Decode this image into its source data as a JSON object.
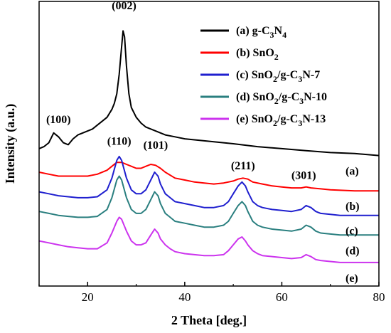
{
  "chart_data": {
    "type": "line",
    "xlabel": "2 Theta [deg.]",
    "ylabel": "Intensity (a.u.)",
    "xlim": [
      10,
      80
    ],
    "x_ticks": [
      20,
      40,
      60,
      80
    ],
    "y_ticks_shown": false,
    "grid": false,
    "legend_position": "top-right",
    "series": [
      {
        "label": "(a)",
        "legend": [
          "(a) g-C",
          "3",
          "N",
          "4",
          ""
        ],
        "color": "#000000",
        "x": [
          10,
          11,
          12,
          13,
          14,
          15,
          16,
          17,
          18,
          19,
          20,
          21,
          22,
          23,
          24,
          25,
          25.5,
          26,
          26.5,
          27,
          27.3,
          27.6,
          28,
          28.5,
          29,
          30,
          31,
          32,
          34,
          36,
          38,
          40,
          42,
          44,
          46,
          48,
          50,
          55,
          60,
          65,
          70,
          75,
          80
        ],
        "y": [
          0.7,
          0.71,
          0.73,
          0.78,
          0.76,
          0.73,
          0.72,
          0.75,
          0.77,
          0.78,
          0.79,
          0.8,
          0.82,
          0.84,
          0.86,
          0.9,
          0.93,
          0.98,
          1.08,
          1.22,
          1.3,
          1.27,
          1.12,
          0.98,
          0.91,
          0.86,
          0.83,
          0.81,
          0.79,
          0.77,
          0.76,
          0.75,
          0.745,
          0.74,
          0.735,
          0.73,
          0.725,
          0.71,
          0.7,
          0.69,
          0.68,
          0.675,
          0.665
        ]
      },
      {
        "label": "(b)",
        "legend": [
          "(b) SnO",
          "2",
          "",
          "",
          ""
        ],
        "color": "#ff0000",
        "x": [
          10,
          12,
          14,
          16,
          18,
          20,
          22,
          24,
          25,
          26,
          27,
          28,
          29,
          30,
          31,
          32,
          33,
          34,
          35,
          36,
          38,
          40,
          42,
          44,
          46,
          48,
          50,
          51,
          52,
          53,
          54,
          56,
          58,
          60,
          62,
          64,
          65,
          66,
          68,
          70,
          75,
          80
        ],
        "y": [
          0.58,
          0.57,
          0.56,
          0.56,
          0.56,
          0.56,
          0.57,
          0.59,
          0.61,
          0.63,
          0.63,
          0.62,
          0.61,
          0.6,
          0.6,
          0.61,
          0.62,
          0.615,
          0.6,
          0.58,
          0.55,
          0.54,
          0.53,
          0.525,
          0.52,
          0.525,
          0.535,
          0.545,
          0.55,
          0.545,
          0.53,
          0.52,
          0.51,
          0.505,
          0.5,
          0.5,
          0.505,
          0.5,
          0.495,
          0.49,
          0.485,
          0.485
        ]
      },
      {
        "label": "(c)",
        "legend": [
          "(c) SnO",
          "2",
          "/g-C",
          "3",
          "N-7"
        ],
        "color": "#1f1fcf",
        "x": [
          10,
          12,
          14,
          16,
          18,
          20,
          22,
          24,
          25,
          26,
          26.5,
          27,
          28,
          29,
          30,
          31,
          32,
          33,
          33.8,
          34.5,
          35,
          36,
          37,
          38,
          40,
          42,
          44,
          46,
          48,
          49,
          50,
          51,
          51.8,
          52.5,
          53,
          54,
          55,
          56,
          58,
          60,
          62,
          64,
          65,
          66,
          67,
          68,
          70,
          72,
          75,
          80
        ],
        "y": [
          0.48,
          0.47,
          0.46,
          0.455,
          0.45,
          0.45,
          0.455,
          0.49,
          0.55,
          0.64,
          0.66,
          0.64,
          0.55,
          0.49,
          0.47,
          0.47,
          0.49,
          0.54,
          0.58,
          0.56,
          0.52,
          0.47,
          0.45,
          0.43,
          0.42,
          0.41,
          0.4,
          0.4,
          0.41,
          0.43,
          0.47,
          0.51,
          0.53,
          0.51,
          0.48,
          0.43,
          0.41,
          0.4,
          0.39,
          0.385,
          0.38,
          0.39,
          0.41,
          0.4,
          0.38,
          0.37,
          0.365,
          0.36,
          0.36,
          0.36
        ]
      },
      {
        "label": "(d)",
        "legend": [
          "(d) SnO",
          "2",
          "/g-C",
          "3",
          "N-10"
        ],
        "color": "#2a7f7f",
        "x": [
          10,
          12,
          14,
          16,
          18,
          20,
          22,
          24,
          25,
          26,
          26.5,
          27,
          28,
          29,
          30,
          31,
          32,
          33,
          33.8,
          34.5,
          35,
          36,
          37,
          38,
          40,
          42,
          44,
          46,
          48,
          49,
          50,
          51,
          51.8,
          52.5,
          53,
          54,
          55,
          56,
          58,
          60,
          62,
          64,
          65,
          66,
          67,
          68,
          70,
          72,
          75,
          80
        ],
        "y": [
          0.38,
          0.37,
          0.36,
          0.355,
          0.35,
          0.35,
          0.355,
          0.39,
          0.45,
          0.54,
          0.56,
          0.54,
          0.45,
          0.39,
          0.37,
          0.37,
          0.39,
          0.44,
          0.48,
          0.46,
          0.42,
          0.37,
          0.35,
          0.33,
          0.32,
          0.31,
          0.3,
          0.3,
          0.31,
          0.33,
          0.37,
          0.41,
          0.43,
          0.41,
          0.38,
          0.33,
          0.31,
          0.3,
          0.29,
          0.285,
          0.28,
          0.29,
          0.31,
          0.3,
          0.28,
          0.27,
          0.265,
          0.26,
          0.26,
          0.26
        ]
      },
      {
        "label": "(e)",
        "legend": [
          "(e) SnO",
          "2",
          "/g-C",
          "3",
          "N-13"
        ],
        "color": "#cc33ee",
        "x": [
          10,
          12,
          14,
          16,
          18,
          20,
          22,
          24,
          25,
          26,
          26.5,
          27,
          28,
          29,
          30,
          31,
          32,
          33,
          33.8,
          34.5,
          35,
          36,
          37,
          38,
          40,
          42,
          44,
          46,
          48,
          49,
          50,
          51,
          51.8,
          52.5,
          53,
          54,
          55,
          56,
          58,
          60,
          62,
          64,
          65,
          66,
          67,
          68,
          70,
          72,
          75,
          80
        ],
        "y": [
          0.23,
          0.22,
          0.21,
          0.2,
          0.195,
          0.19,
          0.19,
          0.22,
          0.27,
          0.33,
          0.35,
          0.34,
          0.28,
          0.23,
          0.21,
          0.21,
          0.22,
          0.26,
          0.29,
          0.27,
          0.24,
          0.21,
          0.19,
          0.175,
          0.165,
          0.16,
          0.155,
          0.155,
          0.16,
          0.18,
          0.21,
          0.24,
          0.25,
          0.23,
          0.21,
          0.18,
          0.165,
          0.155,
          0.15,
          0.145,
          0.14,
          0.145,
          0.16,
          0.15,
          0.135,
          0.13,
          0.125,
          0.12,
          0.12,
          0.12
        ]
      }
    ],
    "annotations": [
      {
        "text": "(100)",
        "x": 14,
        "y": 0.83
      },
      {
        "text": "(002)",
        "x": 27.5,
        "y": 1.41
      },
      {
        "text": "(110)",
        "x": 26.5,
        "y": 0.72
      },
      {
        "text": "(101)",
        "x": 34,
        "y": 0.7
      },
      {
        "text": "(211)",
        "x": 52,
        "y": 0.595
      },
      {
        "text": "(301)",
        "x": 64.5,
        "y": 0.545
      }
    ]
  }
}
